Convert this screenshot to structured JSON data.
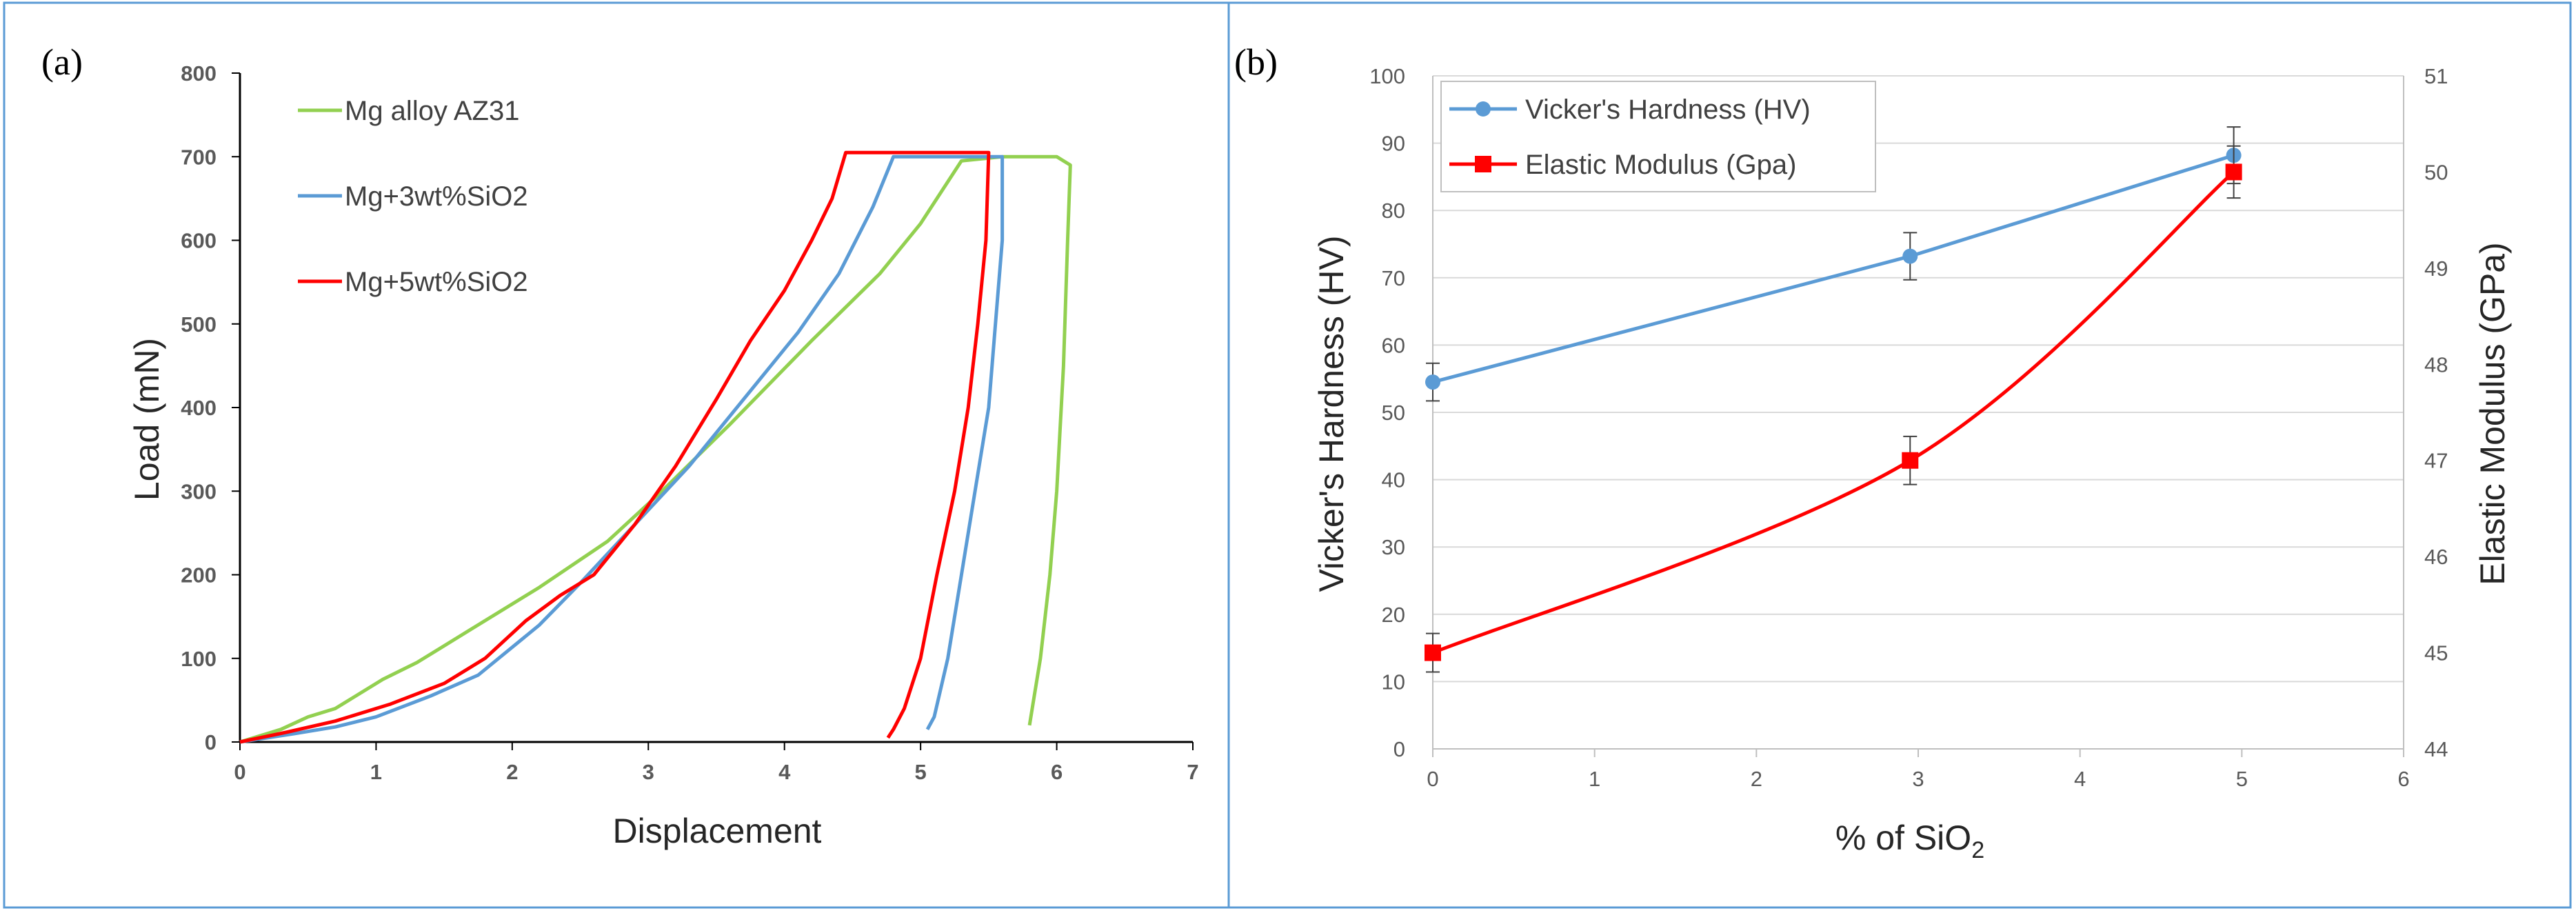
{
  "colors": {
    "green": "#92d050",
    "blue": "#5b9bd5",
    "red": "#ff0000",
    "frame": "#5b9bd5",
    "grid": "#d9d9d9",
    "errorbar": "#404040"
  },
  "chart_data": [
    {
      "type": "line",
      "panel_label": "(a)",
      "title": "",
      "xlabel": "Displacement",
      "ylabel": "Load (mN)",
      "xlim": [
        0,
        7
      ],
      "ylim": [
        0,
        800
      ],
      "xticks": [
        "0",
        "1",
        "2",
        "3",
        "4",
        "5",
        "6",
        "7"
      ],
      "yticks": [
        "0",
        "100",
        "200",
        "300",
        "400",
        "500",
        "600",
        "700",
        "800"
      ],
      "grid": false,
      "legend_position": "top-left",
      "series": [
        {
          "name": "Mg alloy AZ31",
          "color": "#92d050",
          "points": [
            [
              0,
              0
            ],
            [
              0.3,
              15
            ],
            [
              0.5,
              30
            ],
            [
              0.7,
              40
            ],
            [
              1.05,
              75
            ],
            [
              1.3,
              95
            ],
            [
              1.7,
              135
            ],
            [
              2.2,
              185
            ],
            [
              2.7,
              240
            ],
            [
              3.1,
              300
            ],
            [
              3.6,
              380
            ],
            [
              4.2,
              480
            ],
            [
              4.7,
              560
            ],
            [
              5.0,
              620
            ],
            [
              5.2,
              670
            ],
            [
              5.3,
              695
            ],
            [
              5.6,
              700
            ],
            [
              6.0,
              700
            ],
            [
              6.1,
              690
            ],
            [
              6.08,
              600
            ],
            [
              6.05,
              450
            ],
            [
              6.0,
              300
            ],
            [
              5.95,
              200
            ],
            [
              5.88,
              100
            ],
            [
              5.83,
              50
            ],
            [
              5.8,
              20
            ]
          ]
        },
        {
          "name": "Mg+3wt%SiO2",
          "color": "#5b9bd5",
          "points": [
            [
              0,
              0
            ],
            [
              0.4,
              10
            ],
            [
              0.7,
              18
            ],
            [
              1.0,
              30
            ],
            [
              1.4,
              55
            ],
            [
              1.75,
              80
            ],
            [
              2.2,
              140
            ],
            [
              2.5,
              190
            ],
            [
              2.9,
              260
            ],
            [
              3.3,
              330
            ],
            [
              3.7,
              410
            ],
            [
              4.1,
              490
            ],
            [
              4.4,
              560
            ],
            [
              4.65,
              640
            ],
            [
              4.8,
              700
            ],
            [
              5.6,
              700
            ],
            [
              5.6,
              600
            ],
            [
              5.55,
              500
            ],
            [
              5.5,
              400
            ],
            [
              5.4,
              300
            ],
            [
              5.3,
              200
            ],
            [
              5.2,
              100
            ],
            [
              5.1,
              30
            ],
            [
              5.05,
              15
            ]
          ]
        },
        {
          "name": "Mg+5wt%SiO2",
          "color": "#ff0000",
          "points": [
            [
              0,
              0
            ],
            [
              0.35,
              12
            ],
            [
              0.7,
              25
            ],
            [
              1.1,
              45
            ],
            [
              1.5,
              70
            ],
            [
              1.8,
              100
            ],
            [
              2.1,
              145
            ],
            [
              2.35,
              175
            ],
            [
              2.6,
              200
            ],
            [
              2.9,
              260
            ],
            [
              3.2,
              330
            ],
            [
              3.5,
              410
            ],
            [
              3.75,
              480
            ],
            [
              4.0,
              540
            ],
            [
              4.2,
              600
            ],
            [
              4.35,
              650
            ],
            [
              4.45,
              705
            ],
            [
              5.5,
              705
            ],
            [
              5.48,
              600
            ],
            [
              5.42,
              500
            ],
            [
              5.35,
              400
            ],
            [
              5.25,
              300
            ],
            [
              5.12,
              200
            ],
            [
              5.0,
              100
            ],
            [
              4.88,
              40
            ],
            [
              4.8,
              15
            ],
            [
              4.76,
              5
            ]
          ]
        }
      ]
    },
    {
      "type": "line",
      "panel_label": "(b)",
      "title": "",
      "xlabel": "% of SiO",
      "xlabel_subscript": "2",
      "ylabel": "Vicker's Hardness (HV)",
      "y2label": "Elastic Modulus (GPa)",
      "xlim": [
        0,
        6
      ],
      "ylim": [
        0,
        100
      ],
      "y2lim": [
        44,
        51
      ],
      "xticks": [
        "0",
        "1",
        "2",
        "3",
        "4",
        "5",
        "6"
      ],
      "yticks": [
        "0",
        "10",
        "20",
        "30",
        "40",
        "50",
        "60",
        "70",
        "80",
        "90",
        "100"
      ],
      "y2ticks": [
        "44",
        "45",
        "46",
        "47",
        "48",
        "49",
        "50",
        "51"
      ],
      "grid": true,
      "legend_position": "top-left",
      "series": [
        {
          "name": "Vicker's Hardness (HV)",
          "axis": "left",
          "color": "#5b9bd5",
          "marker": "circle",
          "x": [
            0,
            2.95,
            4.95
          ],
          "y": [
            54.5,
            73.2,
            88.2
          ],
          "error": [
            2.8,
            3.5,
            4.2
          ]
        },
        {
          "name": "Elastic Modulus (Gpa)",
          "axis": "right",
          "color": "#ff0000",
          "marker": "square",
          "x": [
            0,
            2.95,
            4.95
          ],
          "y": [
            45.0,
            47.0,
            50.0
          ],
          "error": [
            0.2,
            0.25,
            0.27
          ]
        }
      ]
    }
  ]
}
